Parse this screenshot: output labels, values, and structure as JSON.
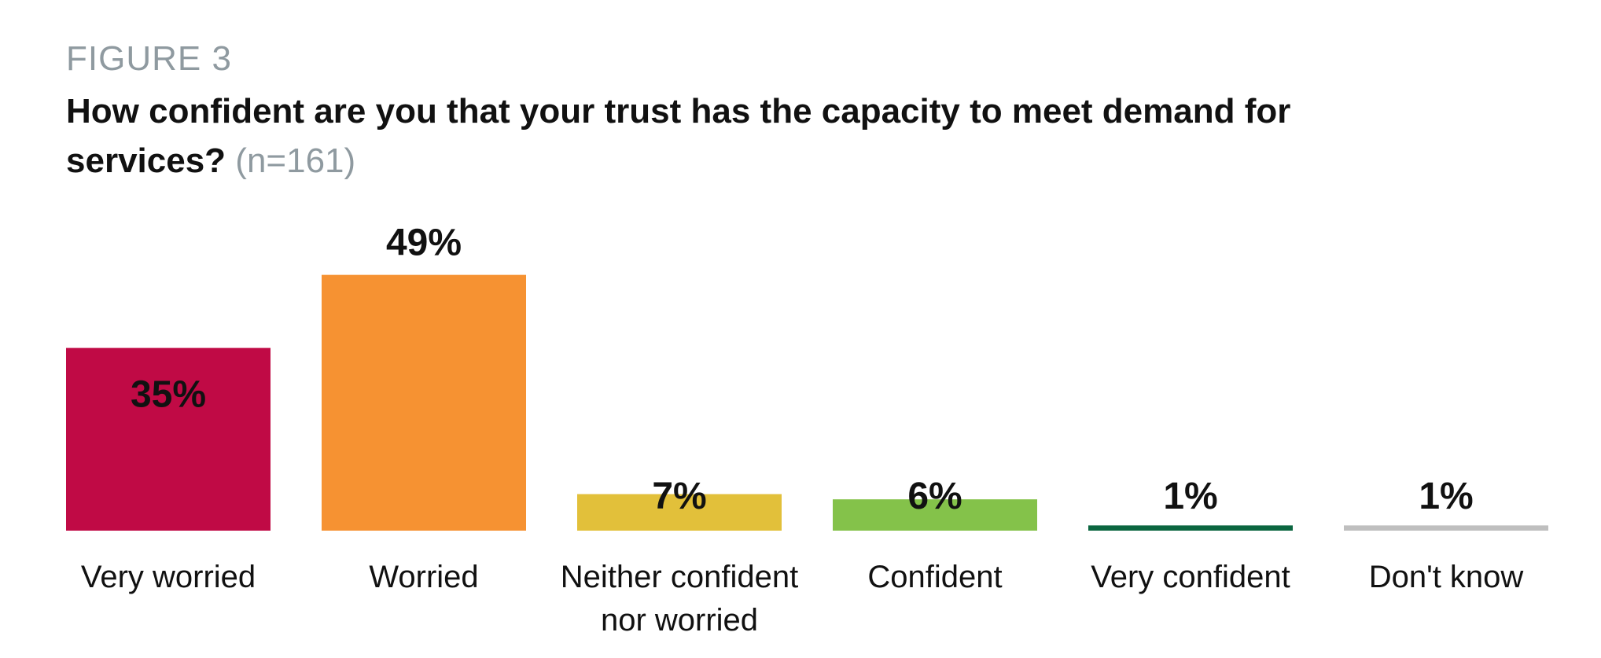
{
  "figure_label": "FIGURE 3",
  "title": "How confident are you that your trust has the capacity to meet demand for services?",
  "title_note": "(n=161)",
  "chart_data": {
    "type": "bar",
    "title": "How confident are you that your trust has the capacity to meet demand for services?",
    "categories": [
      [
        "Very worried"
      ],
      [
        "Worried"
      ],
      [
        "Neither confident",
        "nor worried"
      ],
      [
        "Confident"
      ],
      [
        "Very confident"
      ],
      [
        "Don't know"
      ]
    ],
    "values": [
      35,
      49,
      7,
      6,
      1,
      1
    ],
    "value_labels": [
      "35%",
      "49%",
      "7%",
      "6%",
      "1%",
      "1%"
    ],
    "colors": [
      "#c00a45",
      "#f69232",
      "#e2c03a",
      "#84c24a",
      "#0b6640",
      "#bfbfbf"
    ],
    "ylim": [
      0,
      55
    ],
    "grid": false,
    "legend": "none"
  }
}
